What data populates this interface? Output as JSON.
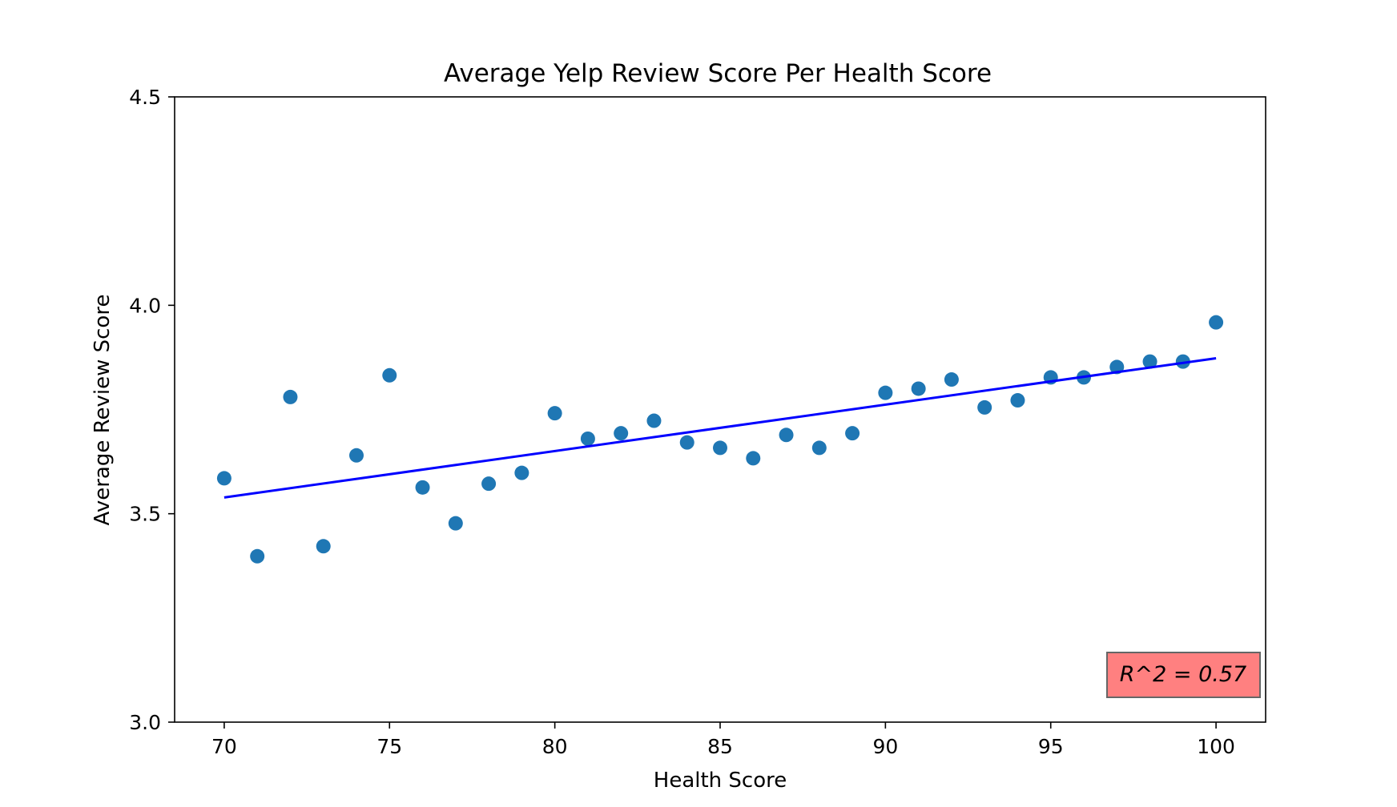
{
  "chart_data": {
    "type": "scatter",
    "title": "Average Yelp Review Score Per Health Score",
    "xlabel": "Health Score",
    "ylabel": "Average Review Score",
    "xlim": [
      68.5,
      101.5
    ],
    "ylim": [
      3.0,
      4.5
    ],
    "xticks": [
      70,
      75,
      80,
      85,
      90,
      95,
      100
    ],
    "xtick_labels": [
      "70",
      "75",
      "80",
      "85",
      "90",
      "95",
      "100"
    ],
    "yticks": [
      3.0,
      3.5,
      4.0,
      4.5
    ],
    "ytick_labels": [
      "3.0",
      "3.5",
      "4.0",
      "4.5"
    ],
    "grid": false,
    "series": [
      {
        "type": "scatter",
        "color": "#1f77b4",
        "x": [
          70,
          71,
          72,
          73,
          74,
          75,
          76,
          77,
          78,
          79,
          80,
          81,
          82,
          83,
          84,
          85,
          86,
          87,
          88,
          89,
          90,
          91,
          92,
          93,
          94,
          95,
          96,
          97,
          98,
          99,
          100
        ],
        "y": [
          3.585,
          3.398,
          3.78,
          3.422,
          3.64,
          3.832,
          3.563,
          3.477,
          3.572,
          3.598,
          3.741,
          3.68,
          3.693,
          3.723,
          3.671,
          3.658,
          3.633,
          3.689,
          3.658,
          3.693,
          3.79,
          3.8,
          3.822,
          3.755,
          3.772,
          3.827,
          3.827,
          3.852,
          3.865,
          3.865,
          3.959
        ]
      },
      {
        "type": "line",
        "color": "#0000ff",
        "x": [
          70,
          100
        ],
        "y": [
          3.539,
          3.873
        ]
      }
    ],
    "annotations": [
      {
        "text": "R^2 = 0.57",
        "position": "bottom-right",
        "background": "#ff8080",
        "border": "#666666"
      }
    ]
  }
}
